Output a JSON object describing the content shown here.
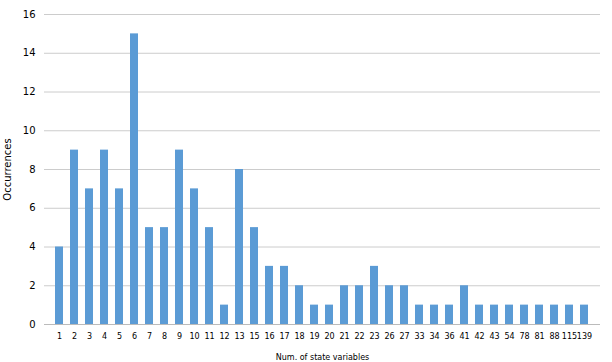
{
  "chart_data": {
    "type": "bar",
    "categories": [
      "1",
      "2",
      "3",
      "4",
      "5",
      "6",
      "7",
      "8",
      "9",
      "10",
      "11",
      "12",
      "13",
      "15",
      "16",
      "17",
      "18",
      "19",
      "20",
      "21",
      "22",
      "23",
      "26",
      "27",
      "33",
      "34",
      "36",
      "41",
      "42",
      "43",
      "54",
      "78",
      "81",
      "88",
      "115",
      "139"
    ],
    "values": [
      4,
      9,
      7,
      9,
      7,
      15,
      5,
      5,
      9,
      7,
      5,
      1,
      8,
      5,
      3,
      3,
      2,
      1,
      1,
      2,
      2,
      3,
      2,
      2,
      1,
      1,
      1,
      2,
      1,
      1,
      1,
      1,
      1,
      1,
      1,
      1
    ],
    "color": "#5b9bd5",
    "xlabel": "Num. of state variables",
    "ylabel": "Occurrences",
    "ylim": [
      0,
      16
    ],
    "yticks": [
      0,
      2,
      4,
      6,
      8,
      10,
      12,
      14,
      16
    ],
    "grid": true
  }
}
